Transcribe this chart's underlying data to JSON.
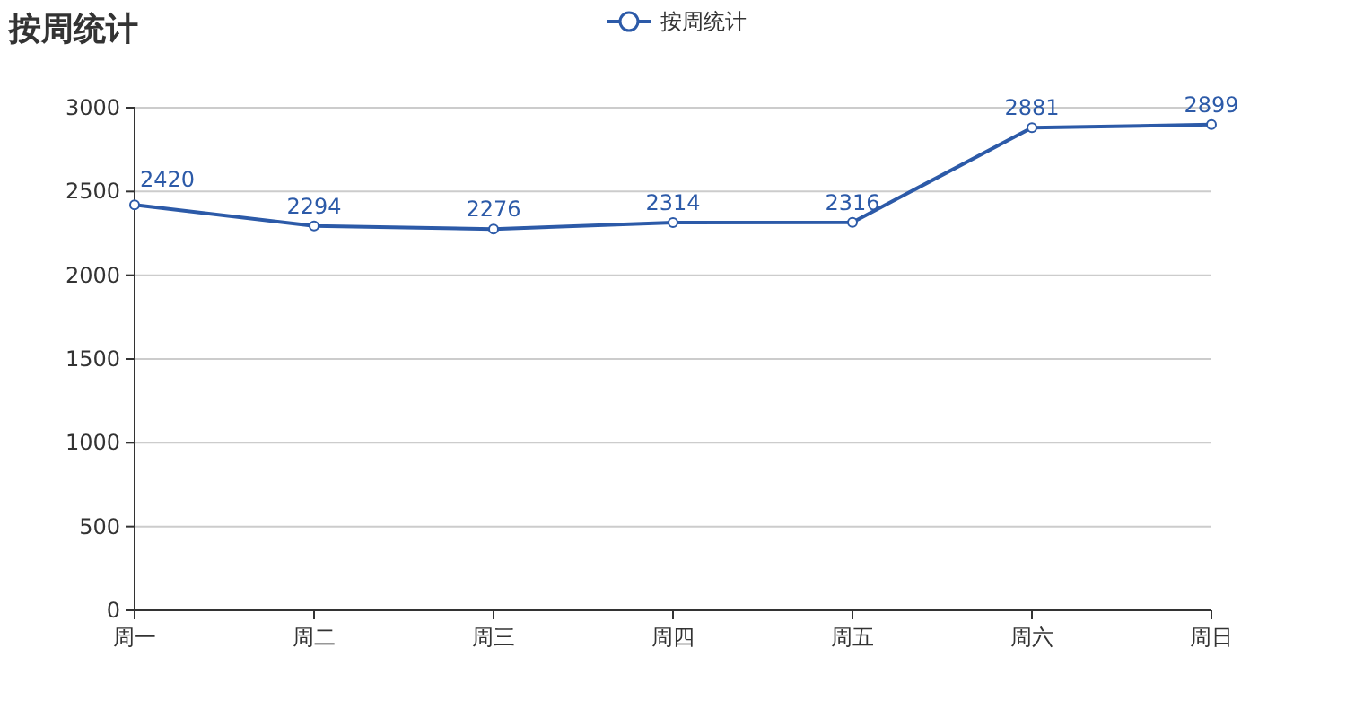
{
  "chart_data": {
    "type": "line",
    "title": "按周统计",
    "categories": [
      "周一",
      "周二",
      "周三",
      "周四",
      "周五",
      "周六",
      "周日"
    ],
    "series": [
      {
        "name": "按周统计",
        "color": "#2c5aa8",
        "values": [
          2420,
          2294,
          2276,
          2314,
          2316,
          2881,
          2899
        ]
      }
    ],
    "ylim": [
      0,
      3000
    ],
    "yticks": [
      0,
      500,
      1000,
      1500,
      2000,
      2500,
      3000
    ],
    "grid": "y",
    "legend": "top",
    "marker": "circle",
    "data_labels": true
  }
}
